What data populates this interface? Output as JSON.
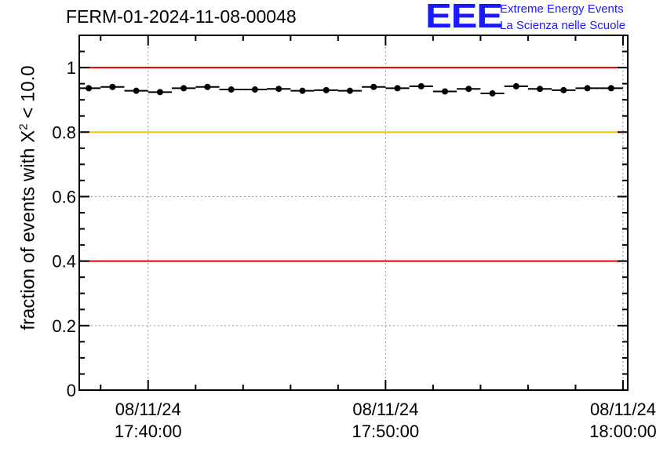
{
  "title": "FERM-01-2024-11-08-00048",
  "logo": {
    "letters": "EEE",
    "line1": "Extreme Energy Events",
    "line2": "La Scienza nelle Scuole",
    "color": "#1a1aff"
  },
  "chart_data": {
    "type": "scatter",
    "ylabel": {
      "pre": "fraction of events with X",
      "sup": "2",
      "post": " < 10.0"
    },
    "ylim": [
      0,
      1.1
    ],
    "yticks": [
      0,
      0.2,
      0.4,
      0.6,
      0.8,
      1
    ],
    "ytick_labels": [
      "0",
      "0.2",
      "0.4",
      "0.6",
      "0.8",
      "1"
    ],
    "xlim_minutes": [
      -2.9,
      20.2
    ],
    "xticks_minutes": [
      0,
      10,
      20
    ],
    "xtick_labels": [
      [
        "08/11/24",
        "17:40:00"
      ],
      [
        "08/11/24",
        "17:50:00"
      ],
      [
        "08/11/24",
        "18:00:00"
      ]
    ],
    "grid": "dotted",
    "reference_lines": [
      {
        "y": 1.0,
        "color": "#e00000"
      },
      {
        "y": 0.8,
        "color": "#ffc000"
      },
      {
        "y": 0.4,
        "color": "#e00000"
      }
    ],
    "bin_width_minutes": 1,
    "x_minutes": [
      -2.5,
      -1.5,
      -0.5,
      0.5,
      1.5,
      2.5,
      3.5,
      4.5,
      5.5,
      6.5,
      7.5,
      8.5,
      9.5,
      10.5,
      11.5,
      12.5,
      13.5,
      14.5,
      15.5,
      16.5,
      17.5,
      18.5,
      19.5
    ],
    "values": [
      0.936,
      0.94,
      0.928,
      0.924,
      0.936,
      0.94,
      0.932,
      0.932,
      0.934,
      0.928,
      0.93,
      0.928,
      0.94,
      0.936,
      0.942,
      0.926,
      0.934,
      0.92,
      0.942,
      0.934,
      0.93,
      0.936,
      0.936
    ]
  }
}
